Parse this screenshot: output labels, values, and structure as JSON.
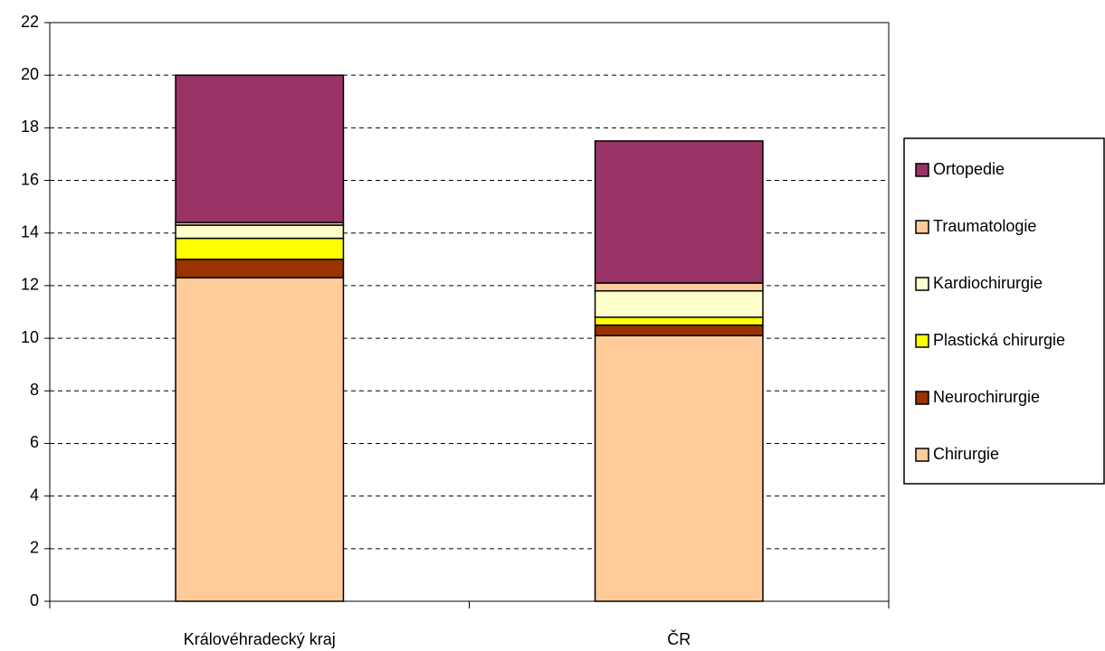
{
  "chart_data": {
    "type": "stacked_bar",
    "categories": [
      "Královéhradecký kraj",
      "ČR"
    ],
    "series": [
      {
        "name": "Chirurgie",
        "color": "#ffcc99",
        "values": [
          12.3,
          10.1
        ]
      },
      {
        "name": "Neurochirurgie",
        "color": "#993300",
        "values": [
          0.7,
          0.4
        ]
      },
      {
        "name": "Plastická chirurgie",
        "color": "#ffff00",
        "values": [
          0.8,
          0.3
        ]
      },
      {
        "name": "Kardiochirurgie",
        "color": "#ffffcc",
        "values": [
          0.5,
          1.0
        ]
      },
      {
        "name": "Traumatologie",
        "color": "#ffcc99",
        "values": [
          0.1,
          0.3
        ]
      },
      {
        "name": "Ortopedie",
        "color": "#993366",
        "values": [
          5.6,
          5.4
        ]
      }
    ],
    "ylim": [
      0,
      22
    ],
    "yticks": [
      0,
      2,
      4,
      6,
      8,
      10,
      12,
      14,
      16,
      18,
      20,
      22
    ],
    "grid": true,
    "legend": "right"
  }
}
